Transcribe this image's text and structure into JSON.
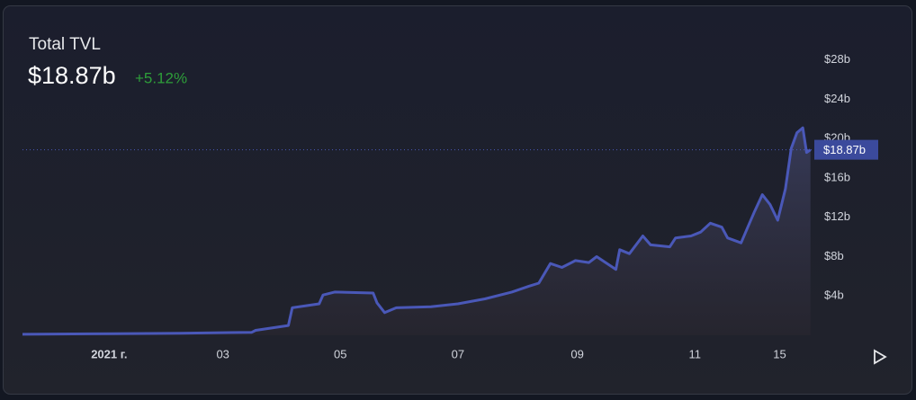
{
  "chart_data": {
    "type": "line",
    "title": "Total TVL",
    "change": "+5.12%",
    "last_value": {
      "value": 18.87,
      "label": "$18.87b"
    },
    "color": "#4a58b8",
    "x": [
      -45,
      -10,
      37,
      74,
      76,
      93,
      95,
      109,
      111,
      117,
      137,
      139,
      143,
      149,
      167,
      181,
      195,
      209,
      218,
      223,
      229,
      235,
      242,
      249,
      253,
      263,
      265,
      270,
      277,
      281,
      291,
      294,
      302,
      307,
      312,
      318,
      321,
      328,
      331,
      335,
      339,
      343,
      347,
      351,
      354,
      357,
      360,
      362,
      364
    ],
    "values": [
      0.1,
      0.15,
      0.2,
      0.3,
      0.5,
      1.0,
      2.8,
      3.2,
      4.1,
      4.4,
      4.3,
      3.3,
      2.3,
      2.8,
      2.9,
      3.2,
      3.7,
      4.4,
      5.0,
      5.3,
      7.3,
      6.9,
      7.6,
      7.4,
      8.0,
      6.7,
      8.7,
      8.3,
      10.1,
      9.2,
      9.0,
      9.9,
      10.1,
      10.5,
      11.4,
      11.0,
      9.9,
      9.4,
      10.8,
      12.6,
      14.3,
      13.3,
      11.7,
      14.9,
      19.0,
      20.6,
      21.1,
      18.6,
      18.87
    ],
    "xlim": [
      -45,
      366
    ],
    "xticks": [
      {
        "value": 0,
        "label": "2021 г."
      },
      {
        "value": 59,
        "label": "03"
      },
      {
        "value": 120,
        "label": "05"
      },
      {
        "value": 181,
        "label": "07"
      },
      {
        "value": 243,
        "label": "09"
      },
      {
        "value": 304,
        "label": "11"
      },
      {
        "value": 348,
        "label": "15"
      }
    ],
    "ylim": [
      0,
      32
    ],
    "yticks": [
      {
        "value": 4,
        "label": "$4b"
      },
      {
        "value": 8,
        "label": "$8b"
      },
      {
        "value": 12,
        "label": "$12b"
      },
      {
        "value": 16,
        "label": "$16b"
      },
      {
        "value": 20,
        "label": "$20b"
      },
      {
        "value": 24,
        "label": "$24b"
      },
      {
        "value": 28,
        "label": "$28b"
      }
    ]
  }
}
